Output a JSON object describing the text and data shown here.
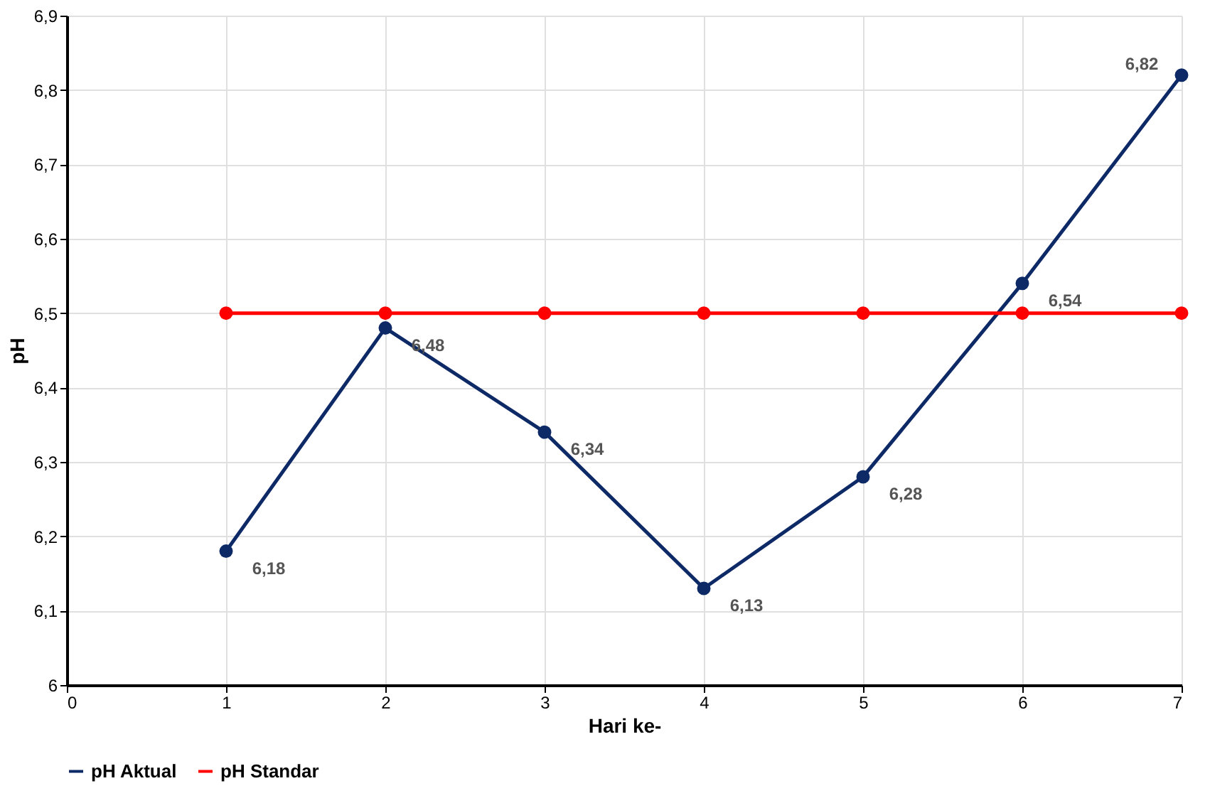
{
  "chart_data": {
    "type": "line",
    "xlabel": "Hari ke-",
    "ylabel": "pH",
    "xlim": [
      0,
      7
    ],
    "xticks": [
      0,
      1,
      2,
      3,
      4,
      5,
      6,
      7
    ],
    "ylim": [
      6,
      6.9
    ],
    "yticks": [
      6,
      {
        "value": 6.1,
        "label": "6,1"
      },
      {
        "value": 6.2,
        "label": "6,2"
      },
      {
        "value": 6.3,
        "label": "6,3"
      },
      {
        "value": 6.4,
        "label": "6,4"
      },
      {
        "value": 6.5,
        "label": "6,5"
      },
      {
        "value": 6.6,
        "label": "6,6"
      },
      {
        "value": 6.7,
        "label": "6,7"
      },
      {
        "value": 6.8,
        "label": "6,8"
      },
      {
        "value": 6.9,
        "label": "6,9"
      }
    ],
    "x": [
      1,
      2,
      3,
      4,
      5,
      6,
      7
    ],
    "series": [
      {
        "name": "pH Aktual",
        "color": "#0d2a66",
        "values": [
          6.18,
          6.48,
          6.34,
          6.13,
          6.28,
          6.54,
          6.82
        ],
        "value_labels": [
          "6,18",
          "6,48",
          "6,34",
          "6,13",
          "6,28",
          "6,54",
          "6,82"
        ]
      },
      {
        "name": "pH Standar",
        "color": "#ff0000",
        "values": [
          6.5,
          6.5,
          6.5,
          6.5,
          6.5,
          6.5,
          6.5
        ]
      }
    ],
    "grid": true,
    "legend": "bottom",
    "marker": "circle",
    "line_style": "solid"
  }
}
